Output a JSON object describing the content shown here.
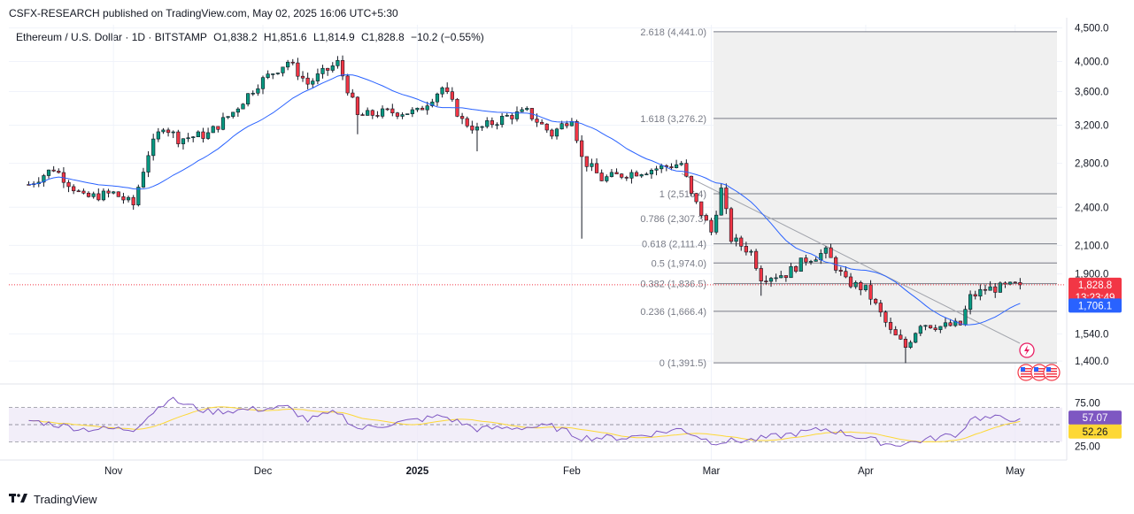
{
  "header": {
    "publisher_line": "CSFX-RESEARCH published on TradingView.com, May 02, 2025 16:06 UTC+5:30"
  },
  "legend": {
    "symbol": "Ethereum / U.S. Dollar · 1D · BITSTAMP",
    "open": "O1,838.2",
    "high": "H1,851.6",
    "low": "L1,814.9",
    "close": "C1,828.8",
    "change": "−10.2 (−0.55%)"
  },
  "footer": {
    "brand": "TradingView"
  },
  "colors": {
    "up": "#089981",
    "down": "#f23645",
    "ma": "#2962ff",
    "rsi": "#7e57c2",
    "rsi_ma": "#fdd835",
    "fib": "#787b86",
    "price_label_bg": "#f23645",
    "ma_label_bg": "#2962ff",
    "rsi_label_bg": "#7e57c2",
    "rsi_ma_label_bg": "#fdd835"
  },
  "chart_data": {
    "type": "candlestick",
    "price_axis": {
      "ticks": [
        "4,500.0",
        "4,000.0",
        "3,600.0",
        "3,200.0",
        "2,800.0",
        "2,400.0",
        "2,100.0",
        "1,900.0",
        "1,540.0",
        "1,400.0"
      ],
      "ylim": [
        1300,
        4550
      ],
      "scale": "log"
    },
    "time_axis": {
      "ticks": [
        "Nov",
        "Dec",
        "2025",
        "Feb",
        "Mar",
        "Apr",
        "May"
      ]
    },
    "current_price": {
      "value": "1,828.8",
      "countdown": "13:23:49"
    },
    "ma_label": "1,706.1",
    "fibonacci": [
      {
        "level": "2.618 (4,441.0)",
        "value": 4441.0
      },
      {
        "level": "1.618 (3,276.2)",
        "value": 3276.2
      },
      {
        "level": "1 (2,516.4)",
        "value": 2516.4
      },
      {
        "level": "0.786 (2,307.3)",
        "value": 2307.3
      },
      {
        "level": "0.618 (2,111.4)",
        "value": 2111.4
      },
      {
        "level": "0.5 (1,974.0)",
        "value": 1974.0
      },
      {
        "level": "0.382 (1,836.5)",
        "value": 1836.5
      },
      {
        "level": "0.236 (1,666.4)",
        "value": 1666.4
      },
      {
        "level": "0 (1,391.5)",
        "value": 1391.5
      }
    ],
    "key_closes": [
      {
        "date": "2024-10-15",
        "close": 2600
      },
      {
        "date": "2024-10-20",
        "close": 2750
      },
      {
        "date": "2024-10-26",
        "close": 2480
      },
      {
        "date": "2024-11-01",
        "close": 2520
      },
      {
        "date": "2024-11-05",
        "close": 2420
      },
      {
        "date": "2024-11-08",
        "close": 2900
      },
      {
        "date": "2024-11-11",
        "close": 3200
      },
      {
        "date": "2024-11-14",
        "close": 3050
      },
      {
        "date": "2024-11-20",
        "close": 3100
      },
      {
        "date": "2024-11-25",
        "close": 3350
      },
      {
        "date": "2024-11-30",
        "close": 3700
      },
      {
        "date": "2024-12-06",
        "close": 4000
      },
      {
        "date": "2024-12-10",
        "close": 3700
      },
      {
        "date": "2024-12-16",
        "close": 3980
      },
      {
        "date": "2024-12-20",
        "close": 3300
      },
      {
        "date": "2024-12-26",
        "close": 3350
      },
      {
        "date": "2025-01-01",
        "close": 3350
      },
      {
        "date": "2025-01-06",
        "close": 3650
      },
      {
        "date": "2025-01-10",
        "close": 3250
      },
      {
        "date": "2025-01-13",
        "close": 3150
      },
      {
        "date": "2025-01-19",
        "close": 3300
      },
      {
        "date": "2025-01-23",
        "close": 3350
      },
      {
        "date": "2025-01-28",
        "close": 3100
      },
      {
        "date": "2025-02-01",
        "close": 3300
      },
      {
        "date": "2025-02-03",
        "close": 2850
      },
      {
        "date": "2025-02-07",
        "close": 2650
      },
      {
        "date": "2025-02-12",
        "close": 2700
      },
      {
        "date": "2025-02-18",
        "close": 2750
      },
      {
        "date": "2025-02-23",
        "close": 2800
      },
      {
        "date": "2025-02-25",
        "close": 2500
      },
      {
        "date": "2025-03-01",
        "close": 2200
      },
      {
        "date": "2025-03-03",
        "close": 2550
      },
      {
        "date": "2025-03-05",
        "close": 2150
      },
      {
        "date": "2025-03-09",
        "close": 2050
      },
      {
        "date": "2025-03-11",
        "close": 1880
      },
      {
        "date": "2025-03-16",
        "close": 1900
      },
      {
        "date": "2025-03-20",
        "close": 2000
      },
      {
        "date": "2025-03-24",
        "close": 2050
      },
      {
        "date": "2025-03-28",
        "close": 1850
      },
      {
        "date": "2025-04-01",
        "close": 1800
      },
      {
        "date": "2025-04-06",
        "close": 1550
      },
      {
        "date": "2025-04-09",
        "close": 1470
      },
      {
        "date": "2025-04-12",
        "close": 1600
      },
      {
        "date": "2025-04-16",
        "close": 1580
      },
      {
        "date": "2025-04-20",
        "close": 1590
      },
      {
        "date": "2025-04-22",
        "close": 1750
      },
      {
        "date": "2025-04-25",
        "close": 1800
      },
      {
        "date": "2025-04-28",
        "close": 1810
      },
      {
        "date": "2025-05-02",
        "close": 1828.8
      }
    ],
    "rsi": {
      "axis_ticks": [
        "75.00",
        "25.00"
      ],
      "ylim": [
        15,
        85
      ],
      "current": "57.07",
      "ma_current": "52.26",
      "key_values": [
        {
          "date": "2024-10-15",
          "rsi": 55
        },
        {
          "date": "2024-10-26",
          "rsi": 45
        },
        {
          "date": "2024-11-05",
          "rsi": 45
        },
        {
          "date": "2024-11-12",
          "rsi": 80
        },
        {
          "date": "2024-11-20",
          "rsi": 65
        },
        {
          "date": "2024-12-06",
          "rsi": 70
        },
        {
          "date": "2024-12-10",
          "rsi": 55
        },
        {
          "date": "2024-12-16",
          "rsi": 65
        },
        {
          "date": "2024-12-20",
          "rsi": 45
        },
        {
          "date": "2025-01-06",
          "rsi": 60
        },
        {
          "date": "2025-01-13",
          "rsi": 45
        },
        {
          "date": "2025-01-28",
          "rsi": 48
        },
        {
          "date": "2025-02-03",
          "rsi": 35
        },
        {
          "date": "2025-02-12",
          "rsi": 35
        },
        {
          "date": "2025-02-23",
          "rsi": 45
        },
        {
          "date": "2025-03-01",
          "rsi": 30
        },
        {
          "date": "2025-03-09",
          "rsi": 32
        },
        {
          "date": "2025-03-24",
          "rsi": 45
        },
        {
          "date": "2025-04-06",
          "rsi": 27
        },
        {
          "date": "2025-04-09",
          "rsi": 28
        },
        {
          "date": "2025-04-20",
          "rsi": 40
        },
        {
          "date": "2025-04-22",
          "rsi": 58
        },
        {
          "date": "2025-05-02",
          "rsi": 57.07
        }
      ]
    }
  }
}
